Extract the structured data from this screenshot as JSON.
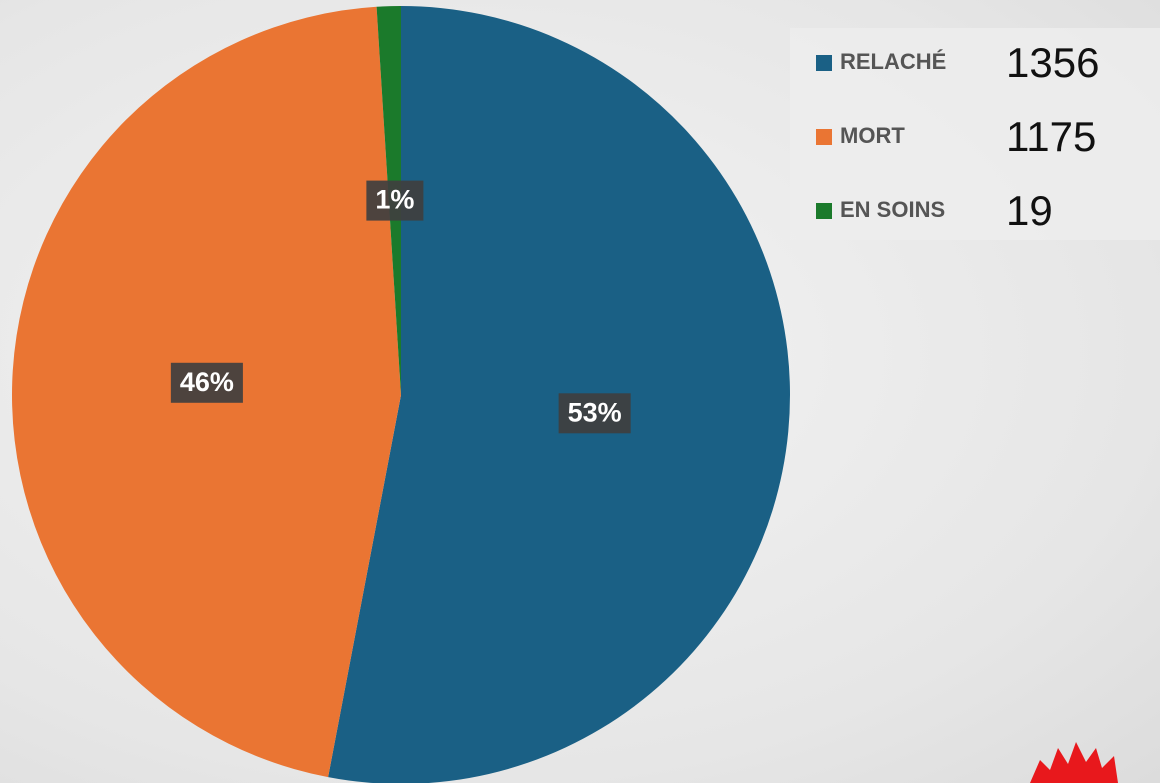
{
  "chart_data": {
    "type": "pie",
    "categories": [
      "RELACHÉ",
      "MORT",
      "EN SOINS"
    ],
    "values": [
      53,
      46,
      1
    ],
    "value_labels": [
      "53%",
      "46%",
      "1%"
    ],
    "counts": [
      1356,
      1175,
      19
    ],
    "colors": [
      "#1a6085",
      "#ea7533",
      "#1b7a2b"
    ]
  }
}
